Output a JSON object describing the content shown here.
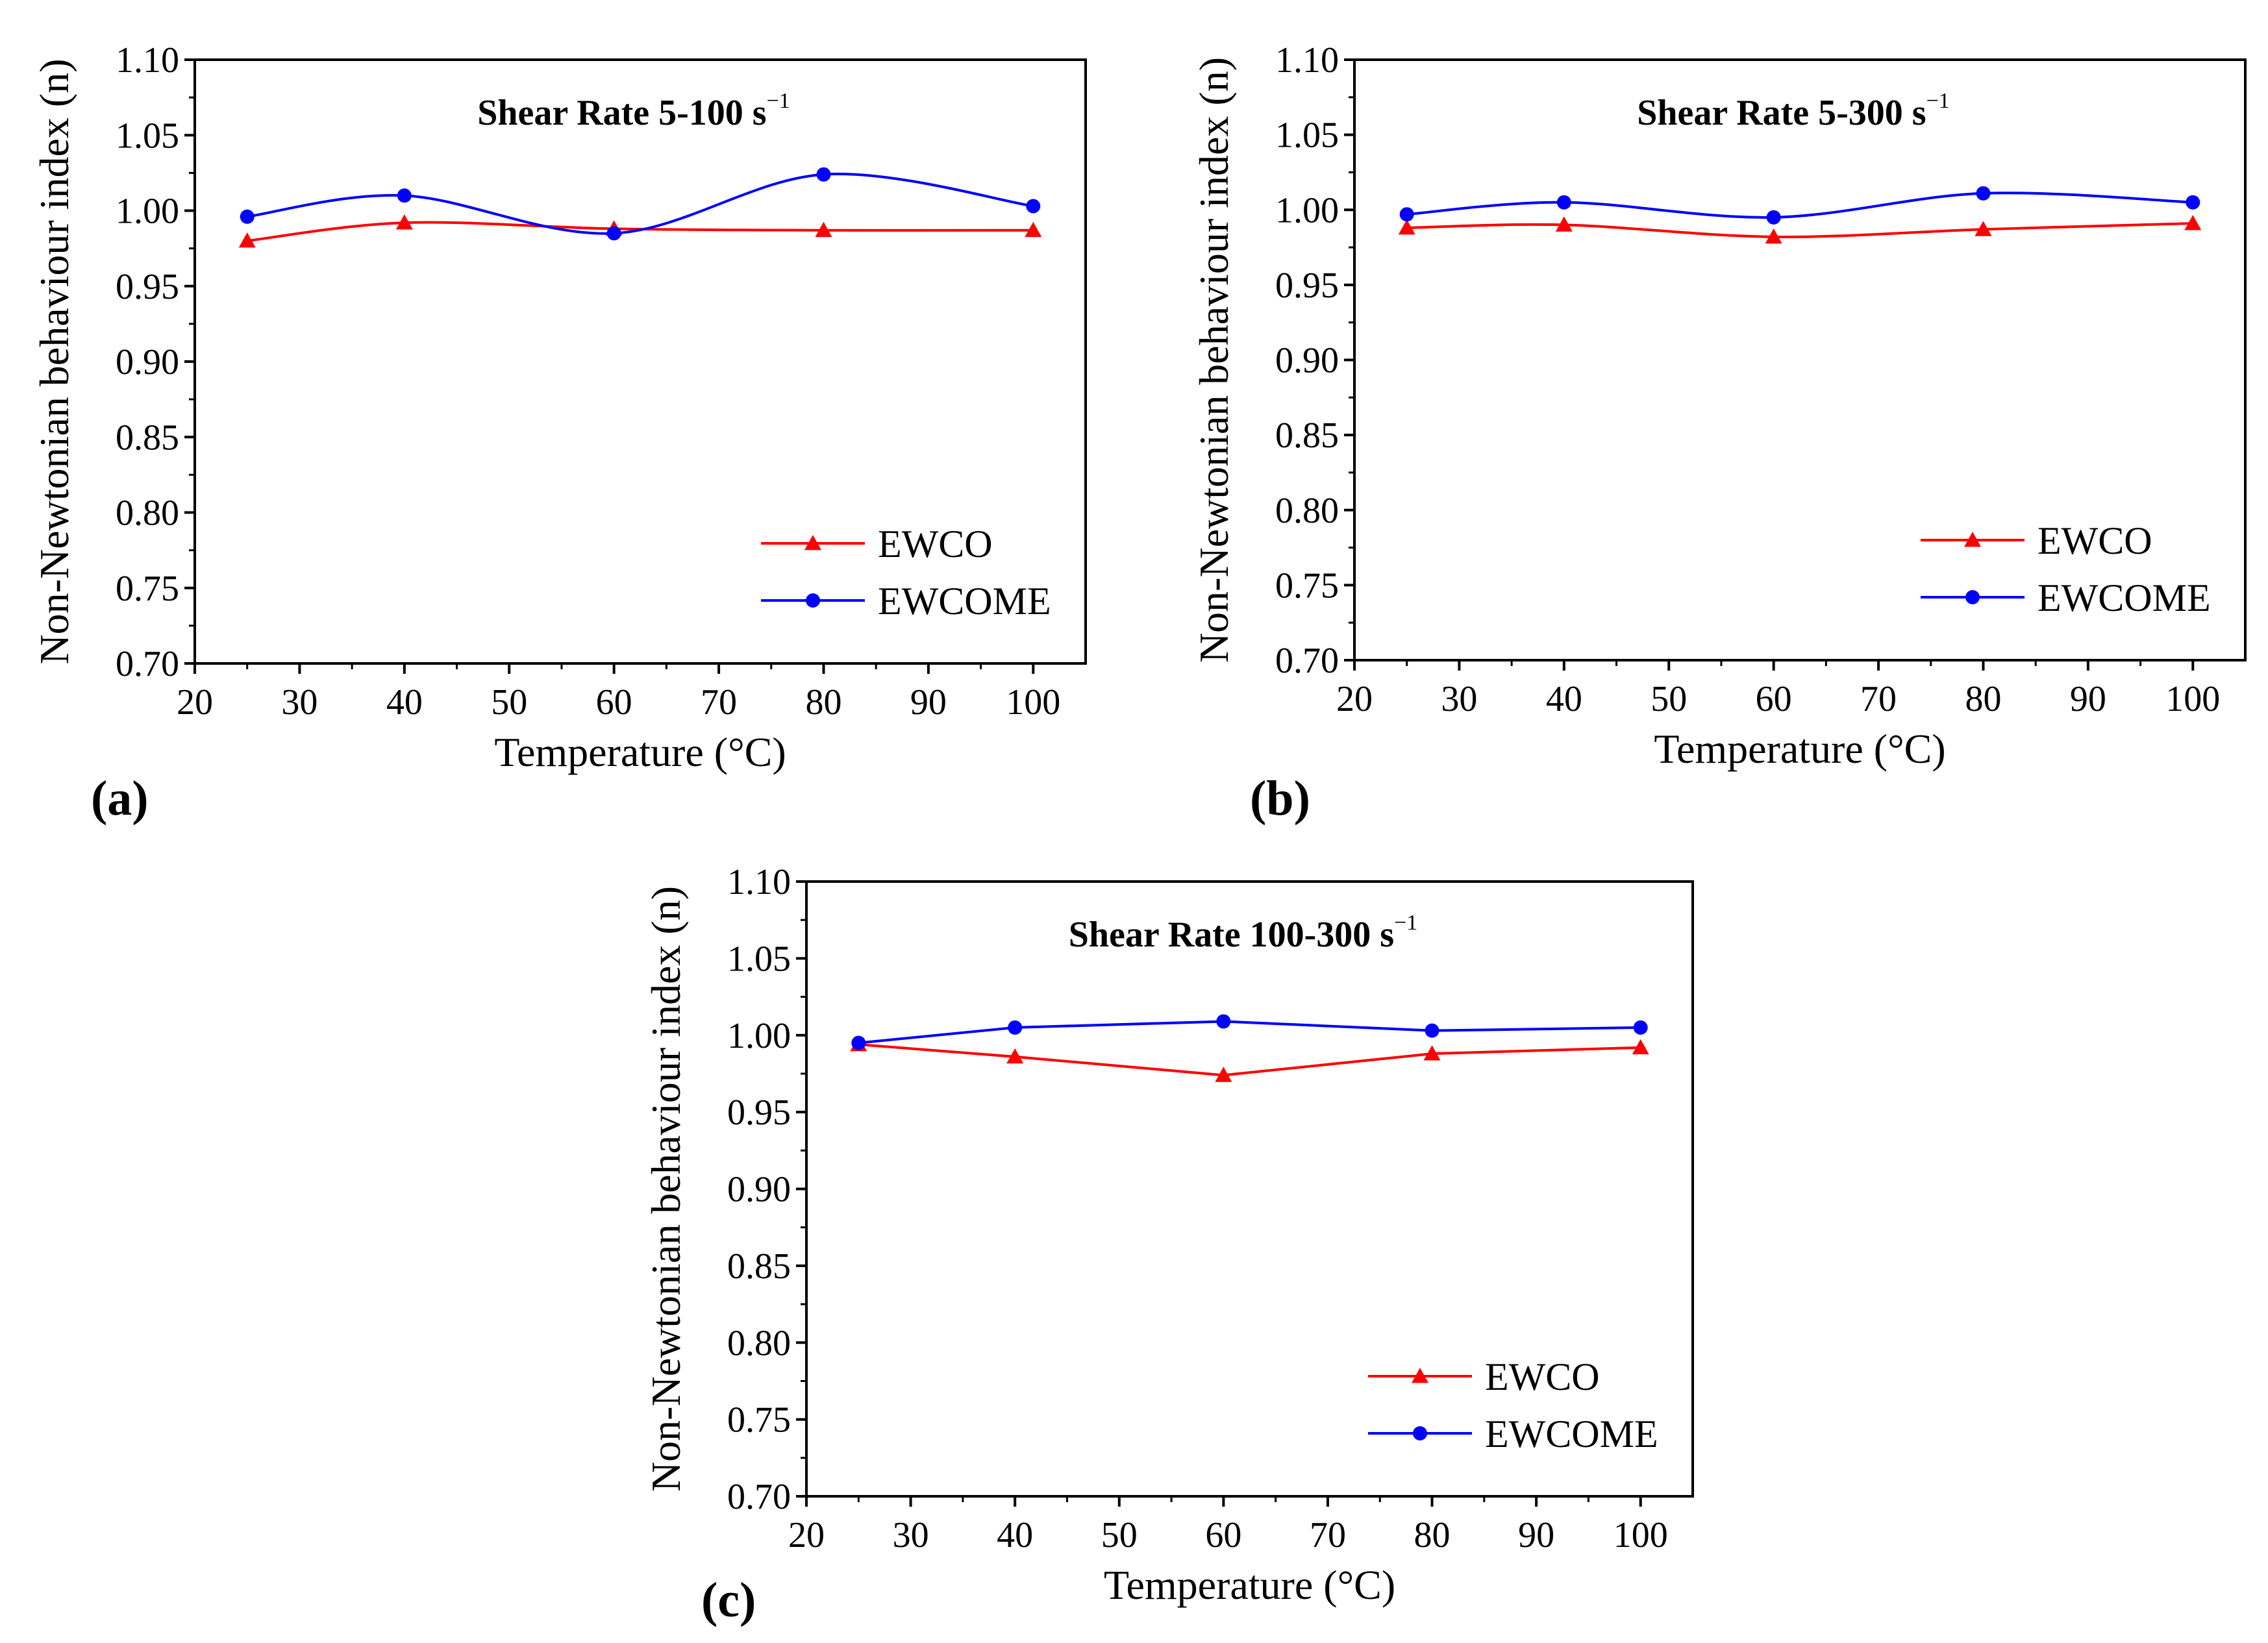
{
  "figure": {
    "background": "#ffffff"
  },
  "chart_data": [
    {
      "type": "line",
      "panel_label": "(a)",
      "title": "Shear Rate 5-100 s",
      "title_superscript": "−1",
      "xlabel": "Temperature (°C)",
      "ylabel": "Non-Newtonian behaviour index (n)",
      "xlim": [
        20,
        105
      ],
      "ylim": [
        0.7,
        1.1
      ],
      "x_ticks": [
        20,
        30,
        40,
        50,
        60,
        70,
        80,
        90,
        100
      ],
      "x_tick_labels": [
        "20",
        "30",
        "40",
        "50",
        "60",
        "70",
        "80",
        "90",
        "100"
      ],
      "y_ticks": [
        0.7,
        0.75,
        0.8,
        0.85,
        0.9,
        0.95,
        1.0,
        1.05,
        1.1
      ],
      "y_tick_labels": [
        "0.70",
        "0.75",
        "0.80",
        "0.85",
        "0.90",
        "0.95",
        "1.00",
        "1.05",
        "1.10"
      ],
      "curve": "smooth",
      "legend_position": "bottom-right",
      "x": [
        25,
        40,
        60,
        80,
        100
      ],
      "series": [
        {
          "name": "EWCO",
          "color": "#ff0000",
          "marker": "triangle",
          "values": [
            0.98,
            0.992,
            0.988,
            0.987,
            0.987
          ]
        },
        {
          "name": "EWCOME",
          "color": "#0000ff",
          "marker": "circle",
          "values": [
            0.996,
            1.01,
            0.985,
            1.024,
            1.003
          ]
        }
      ]
    },
    {
      "type": "line",
      "panel_label": "(b)",
      "title": "Shear Rate 5-300 s",
      "title_superscript": "−1",
      "xlabel": "Temperature (°C)",
      "ylabel": "Non-Newtonian behaviour index (n)",
      "xlim": [
        20,
        105
      ],
      "ylim": [
        0.7,
        1.1
      ],
      "x_ticks": [
        20,
        30,
        40,
        50,
        60,
        70,
        80,
        90,
        100
      ],
      "x_tick_labels": [
        "20",
        "30",
        "40",
        "50",
        "60",
        "70",
        "80",
        "90",
        "100"
      ],
      "y_ticks": [
        0.7,
        0.75,
        0.8,
        0.85,
        0.9,
        0.95,
        1.0,
        1.05,
        1.1
      ],
      "y_tick_labels": [
        "0.70",
        "0.75",
        "0.80",
        "0.85",
        "0.90",
        "0.95",
        "1.00",
        "1.05",
        "1.10"
      ],
      "curve": "smooth",
      "legend_position": "bottom-right",
      "x": [
        25,
        40,
        60,
        80,
        100
      ],
      "series": [
        {
          "name": "EWCO",
          "color": "#ff0000",
          "marker": "triangle",
          "values": [
            0.988,
            0.99,
            0.982,
            0.987,
            0.991
          ]
        },
        {
          "name": "EWCOME",
          "color": "#0000ff",
          "marker": "circle",
          "values": [
            0.997,
            1.005,
            0.995,
            1.011,
            1.005
          ]
        }
      ]
    },
    {
      "type": "line",
      "panel_label": "(c)",
      "title": "Shear Rate 100-300 s",
      "title_superscript": "−1",
      "xlabel": "Temperature (°C)",
      "ylabel": "Non-Newtonian behaviour index (n)",
      "xlim": [
        20,
        105
      ],
      "ylim": [
        0.7,
        1.1
      ],
      "x_ticks": [
        20,
        30,
        40,
        50,
        60,
        70,
        80,
        90,
        100
      ],
      "x_tick_labels": [
        "20",
        "30",
        "40",
        "50",
        "60",
        "70",
        "80",
        "90",
        "100"
      ],
      "y_ticks": [
        0.7,
        0.75,
        0.8,
        0.85,
        0.9,
        0.95,
        1.0,
        1.05,
        1.1
      ],
      "y_tick_labels": [
        "0.70",
        "0.75",
        "0.80",
        "0.85",
        "0.90",
        "0.95",
        "1.00",
        "1.05",
        "1.10"
      ],
      "curve": "straight",
      "legend_position": "bottom-right",
      "x": [
        25,
        40,
        60,
        80,
        100
      ],
      "series": [
        {
          "name": "EWCO",
          "color": "#ff0000",
          "marker": "triangle",
          "values": [
            0.994,
            0.986,
            0.974,
            0.988,
            0.992
          ]
        },
        {
          "name": "EWCOME",
          "color": "#0000ff",
          "marker": "circle",
          "values": [
            0.995,
            1.005,
            1.009,
            1.003,
            1.005
          ]
        }
      ]
    }
  ]
}
